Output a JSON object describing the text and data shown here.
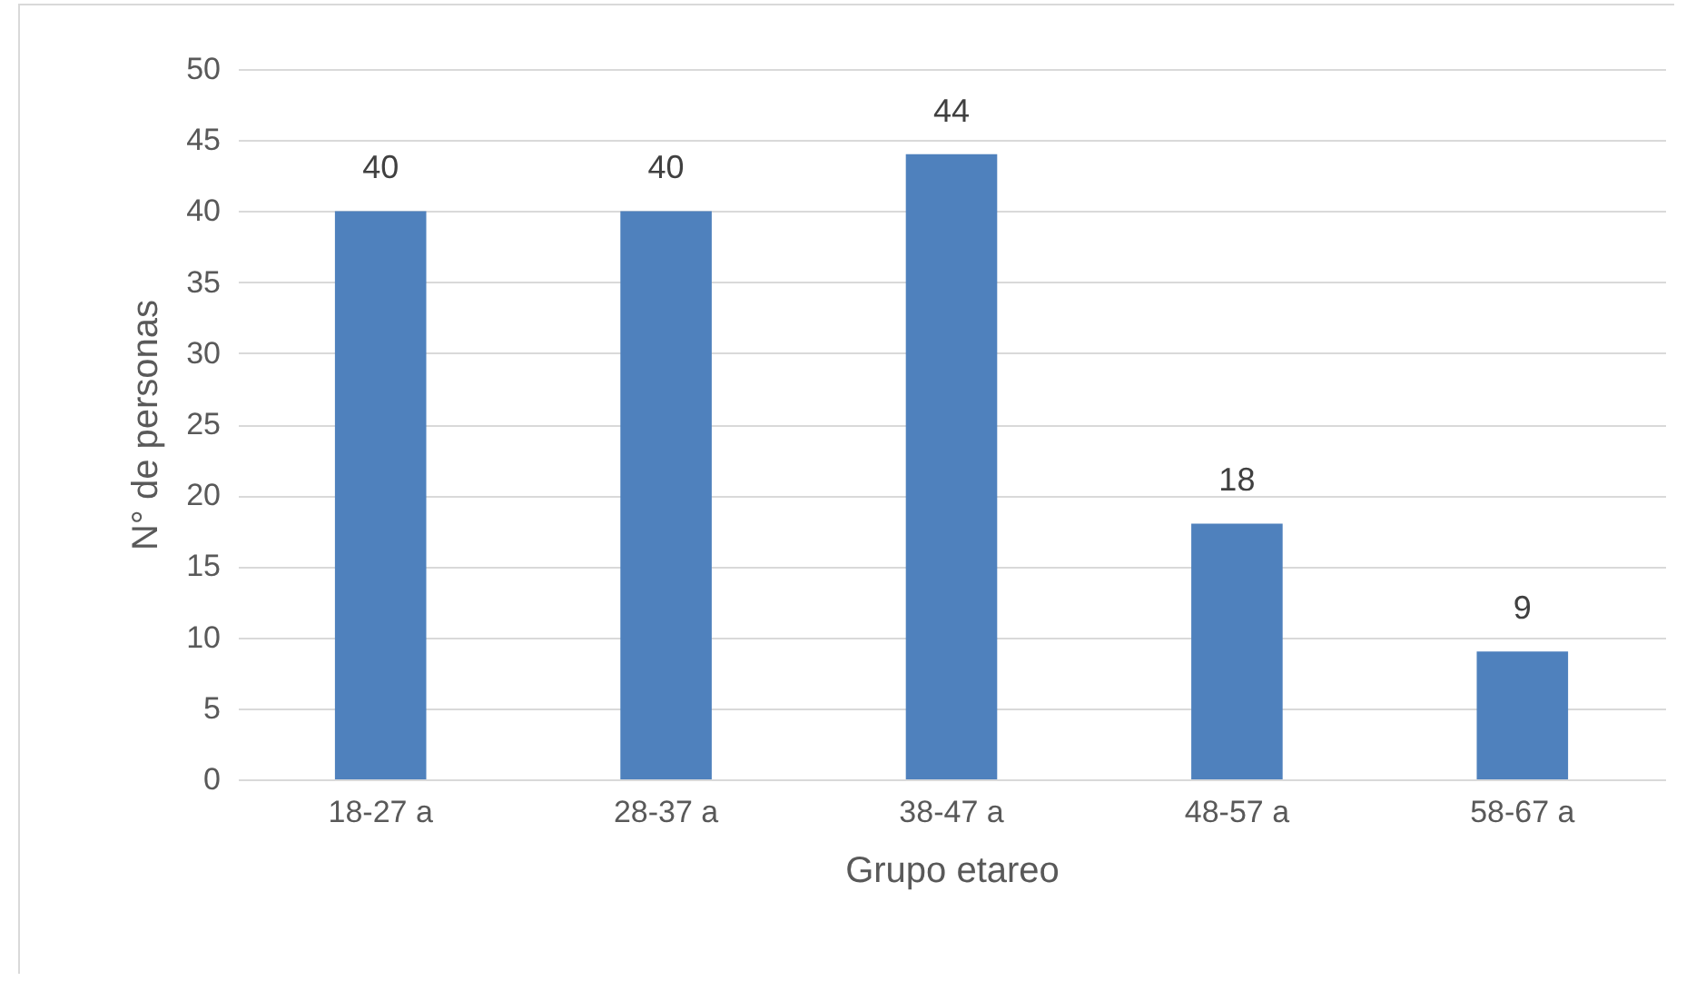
{
  "chart_data": {
    "type": "bar",
    "xlabel": "Grupo etareo",
    "ylabel": "N° de personas",
    "categories": [
      "18-27 a",
      "28-37 a",
      "38-47 a",
      "48-57 a",
      "58-67 a"
    ],
    "values": [
      40,
      40,
      44,
      18,
      9
    ],
    "color": "#4f81bd",
    "ylim": [
      0,
      50
    ],
    "yticks": [
      0,
      5,
      10,
      15,
      20,
      25,
      30,
      35,
      40,
      45,
      50
    ],
    "grid": "y",
    "data_labels": true
  }
}
